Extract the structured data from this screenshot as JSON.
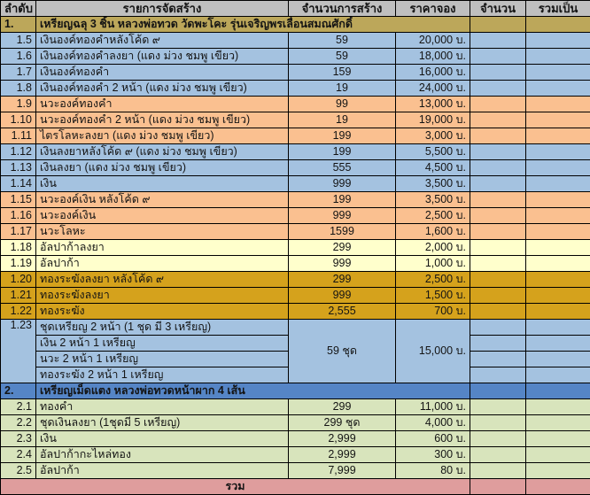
{
  "colors": {
    "header_bg": "#BFBFBF",
    "section1_bg": "#BCA75A",
    "blue_bg": "#A4C2E0",
    "orange_bg": "#FAC090",
    "cream_bg": "#FFFFCC",
    "gold_bg": "#D5A21C",
    "section2_bg": "#5585C6",
    "green_bg": "#D8E4BC",
    "pink_bg": "#DF9D9D",
    "border": "#000000",
    "text": "#141414"
  },
  "table": {
    "columns": [
      {
        "key": "order",
        "label": "ลำดับ"
      },
      {
        "key": "item",
        "label": "รายการจัดสร้าง"
      },
      {
        "key": "qty_made",
        "label": "จำนวนการสร้าง"
      },
      {
        "key": "price",
        "label": "ราคาจอง"
      },
      {
        "key": "qty",
        "label": "จำนวน"
      },
      {
        "key": "total",
        "label": "รวมเป็น"
      }
    ],
    "rows": [
      {
        "type": "section",
        "order": "1.",
        "item": "เหรียญฉลุ 3 ชิ้น หลวงพ่อทวด วัดพะโคะ รุ่นเจริญพรเลื่อนสมณศักดิ์",
        "style": "section1_bg"
      },
      {
        "type": "item",
        "order": "1.5",
        "item": "เงินองค์ทองคำหลังโค้ด ๙",
        "qty_made": "59",
        "price": "20,000 บ.",
        "style": "blue_bg"
      },
      {
        "type": "item",
        "order": "1.6",
        "item": "เงินองค์ทองคำลงยา (แดง ม่วง ชมพู เขียว)",
        "qty_made": "59",
        "price": "18,000 บ.",
        "style": "blue_bg"
      },
      {
        "type": "item",
        "order": "1.7",
        "item": "เงินองค์ทองคำ",
        "qty_made": "159",
        "price": "16,000 บ.",
        "style": "blue_bg"
      },
      {
        "type": "item",
        "order": "1.8",
        "item": "เงินองค์ทองคำ 2 หน้า (แดง ม่วง ชมพู เขียว)",
        "qty_made": "19",
        "price": "24,000 บ.",
        "style": "blue_bg"
      },
      {
        "type": "item",
        "order": "1.9",
        "item": "นวะองค์ทองคำ",
        "qty_made": "99",
        "price": "13,000 บ.",
        "style": "orange_bg"
      },
      {
        "type": "item",
        "order": "1.10",
        "item": "นวะองค์ทองคำ 2 หน้า (แดง ม่วง ชมพู เขียว)",
        "qty_made": "19",
        "price": "19,000 บ.",
        "style": "orange_bg"
      },
      {
        "type": "item",
        "order": "1.11",
        "item": "ไตรโลหะลงยา (แดง ม่วง ชมพู เขียว)",
        "qty_made": "199",
        "price": "3,000 บ.",
        "style": "orange_bg"
      },
      {
        "type": "item",
        "order": "1.12",
        "item": "เงินลงยาหลังโค้ด ๙ (แดง ม่วง ชมพู เขียว)",
        "qty_made": "199",
        "price": "5,500 บ.",
        "style": "blue_bg"
      },
      {
        "type": "item",
        "order": "1.13",
        "item": "เงินลงยา (แดง ม่วง ชมพู เขียว)",
        "qty_made": "555",
        "price": "4,500 บ.",
        "style": "blue_bg"
      },
      {
        "type": "item",
        "order": "1.14",
        "item": "เงิน",
        "qty_made": "999",
        "price": "3,500 บ.",
        "style": "blue_bg"
      },
      {
        "type": "item",
        "order": "1.15",
        "item": "นวะองค์เงิน หลังโค้ด ๙",
        "qty_made": "199",
        "price": "3,500 บ.",
        "style": "orange_bg"
      },
      {
        "type": "item",
        "order": "1.16",
        "item": "นวะองค์เงิน",
        "qty_made": "999",
        "price": "2,500 บ.",
        "style": "orange_bg"
      },
      {
        "type": "item",
        "order": "1.17",
        "item": "นวะโลหะ",
        "qty_made": "1599",
        "price": "1,600 บ.",
        "style": "orange_bg"
      },
      {
        "type": "item",
        "order": "1.18",
        "item": "อัลปาก้าลงยา",
        "qty_made": "299",
        "price": "2,000 บ.",
        "style": "cream_bg"
      },
      {
        "type": "item",
        "order": "1.19",
        "item": "อัลปาก้า",
        "qty_made": "999",
        "price": "1,000 บ.",
        "style": "cream_bg"
      },
      {
        "type": "item",
        "order": "1.20",
        "item": "ทองระฆังลงยา หลังโค้ด ๙",
        "qty_made": "299",
        "price": "2,500 บ.",
        "style": "gold_bg"
      },
      {
        "type": "item",
        "order": "1.21",
        "item": "ทองระฆังลงยา",
        "qty_made": "999",
        "price": "1,500 บ.",
        "style": "gold_bg"
      },
      {
        "type": "item",
        "order": "1.22",
        "item": "ทองระฆัง",
        "qty_made": "2,555",
        "price": "700 บ.",
        "style": "gold_bg"
      },
      {
        "type": "set",
        "order": "1.23",
        "lines": [
          "ชุดเหรียญ 2 หน้า (1 ชุด มี 3 เหรียญ)",
          "เงิน 2 หน้า 1 เหรียญ",
          "นวะ 2 หน้า 1 เหรียญ",
          "ทองระฆัง 2 หน้า 1 เหรียญ"
        ],
        "qty_made": "59 ชุด",
        "price": "15,000 บ.",
        "style": "blue_bg"
      },
      {
        "type": "section",
        "order": "2.",
        "item": "เหรียญเม็ดแตง หลวงพ่อทวดหน้าผาก 4 เส้น",
        "style": "section2_bg"
      },
      {
        "type": "item",
        "order": "2.1",
        "item": "ทองคำ",
        "qty_made": "299",
        "price": "11,000 บ.",
        "style": "green_bg"
      },
      {
        "type": "item",
        "order": "2.2",
        "item": "ชุดเงินลงยา (1ชุดมี 5 เหรียญ)",
        "qty_made": "299 ชุด",
        "price": "4,000 บ.",
        "style": "green_bg"
      },
      {
        "type": "item",
        "order": "2.3",
        "item": "เงิน",
        "qty_made": "2,999",
        "price": "600 บ.",
        "style": "green_bg"
      },
      {
        "type": "item",
        "order": "2.4",
        "item": "อัลปาก้ากะไหล่ทอง",
        "qty_made": "2,999",
        "price": "300 บ.",
        "style": "green_bg"
      },
      {
        "type": "item",
        "order": "2.5",
        "item": "อัลปาก้า",
        "qty_made": "7,999",
        "price": "80 บ.",
        "style": "green_bg"
      },
      {
        "type": "footer",
        "label": "รวม",
        "style": "pink_bg"
      }
    ]
  }
}
